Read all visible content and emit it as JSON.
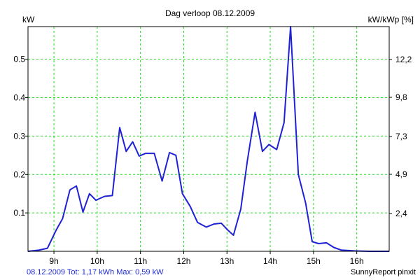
{
  "chart_data": {
    "type": "line",
    "title": "Dag  verloop 08.12.2009",
    "left_unit": "kW",
    "right_unit": "kW/kWp [%]",
    "x_tick_labels": [
      "9h",
      "10h",
      "11h",
      "12h",
      "13h",
      "14h",
      "15h",
      "16h"
    ],
    "x_ticks": [
      9,
      10,
      11,
      12,
      13,
      14,
      15,
      16
    ],
    "xlim": [
      8.4,
      16.75
    ],
    "ylim": [
      0,
      0.585
    ],
    "y_ticks": [
      0.1,
      0.2,
      0.3,
      0.4,
      0.5
    ],
    "y_tick_labels": [
      "0.1",
      "0.2",
      "0.3",
      "0.4",
      "0.5"
    ],
    "right_ticks": [
      2.4,
      4.9,
      7.3,
      9.8,
      12.2
    ],
    "right_tick_labels": [
      "2,4",
      "4,9",
      "7,3",
      "9,8",
      "12,2"
    ],
    "right_ylim": [
      0,
      14.3
    ],
    "grid": true,
    "series": [
      {
        "x": [
          8.4,
          8.65,
          8.85,
          9.05,
          9.2,
          9.37,
          9.52,
          9.67,
          9.82,
          9.97,
          10.17,
          10.35,
          10.52,
          10.67,
          10.82,
          10.97,
          11.12,
          11.32,
          11.5,
          11.67,
          11.82,
          11.97,
          12.15,
          12.32,
          12.52,
          12.7,
          12.87,
          13.02,
          13.15,
          13.32,
          13.47,
          13.65,
          13.82,
          13.97,
          14.15,
          14.32,
          14.47,
          14.65,
          14.82,
          14.97,
          15.12,
          15.3,
          15.47,
          15.65,
          15.82,
          15.97,
          16.3,
          16.75
        ],
        "y": [
          0.0,
          0.003,
          0.008,
          0.055,
          0.085,
          0.16,
          0.17,
          0.102,
          0.15,
          0.133,
          0.143,
          0.145,
          0.322,
          0.26,
          0.285,
          0.248,
          0.255,
          0.255,
          0.183,
          0.257,
          0.25,
          0.15,
          0.117,
          0.075,
          0.063,
          0.071,
          0.073,
          0.055,
          0.042,
          0.11,
          0.235,
          0.362,
          0.26,
          0.278,
          0.265,
          0.335,
          0.585,
          0.2,
          0.125,
          0.025,
          0.02,
          0.022,
          0.01,
          0.003,
          0.002,
          0.001,
          0.0,
          0.0
        ]
      }
    ],
    "colors": {
      "line": "#1f22d4",
      "grid": "#22dd22",
      "axis": "#000000",
      "footer_left": "#1f2bd6"
    }
  },
  "footer": {
    "summary": "08.12.2009 Tot: 1,17 kWh Max: 0,59 kW",
    "credit": "SunnyReport pinxit"
  }
}
